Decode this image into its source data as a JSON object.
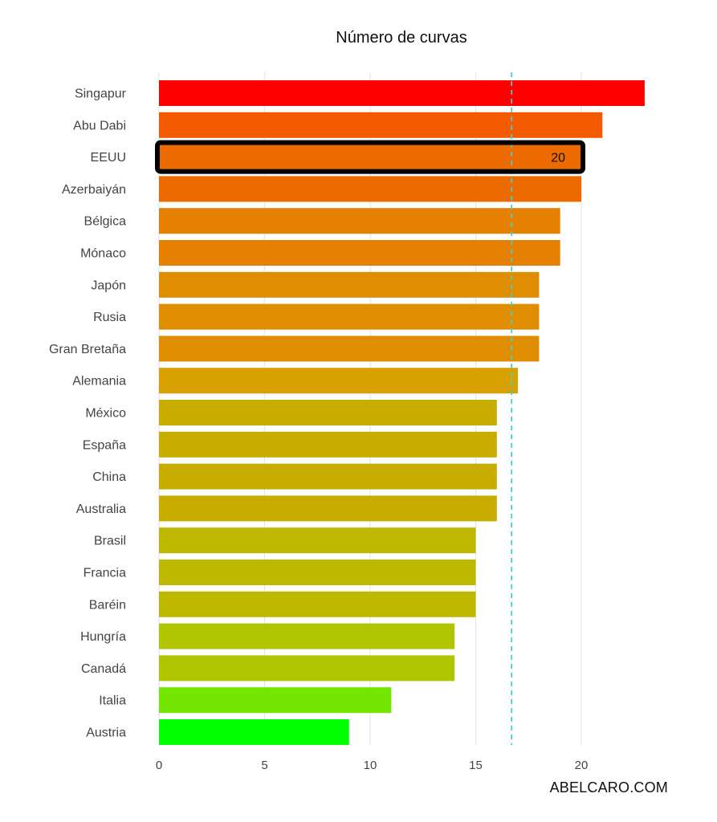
{
  "chart_data": {
    "type": "bar",
    "orientation": "horizontal",
    "title": "Número de curvas",
    "xlabel": "",
    "ylabel": "",
    "xlim": [
      0,
      23.5
    ],
    "xticks": [
      0,
      5,
      10,
      15,
      20
    ],
    "grid": true,
    "categories": [
      "Singapur",
      "Abu Dabi",
      "EEUU",
      "Azerbaiyán",
      "Bélgica",
      "Mónaco",
      "Japón",
      "Rusia",
      "Gran Bretaña",
      "Alemania",
      "México",
      "España",
      "China",
      "Australia",
      "Brasil",
      "Francia",
      "Baréin",
      "Hungría",
      "Canadá",
      "Italia",
      "Austria"
    ],
    "values": [
      23,
      21,
      20,
      20,
      19,
      19,
      18,
      18,
      18,
      17,
      16,
      16,
      16,
      16,
      15,
      15,
      15,
      14,
      14,
      11,
      9
    ],
    "colors": [
      "#ff0000",
      "#f45a00",
      "#ed6a00",
      "#ed6a00",
      "#e58000",
      "#e58000",
      "#de8e00",
      "#de8e00",
      "#de8e00",
      "#d8a000",
      "#c8ad00",
      "#c8ad00",
      "#c8ad00",
      "#c8ad00",
      "#beb800",
      "#beb800",
      "#beb800",
      "#b0c400",
      "#b0c400",
      "#72e600",
      "#00ff00"
    ],
    "highlight": {
      "category": "EEUU",
      "label": "20"
    },
    "reference_line": {
      "value": 16.7,
      "style": "dashed",
      "color": "#3fd0d0"
    }
  },
  "credit": "ABELCARO.COM"
}
